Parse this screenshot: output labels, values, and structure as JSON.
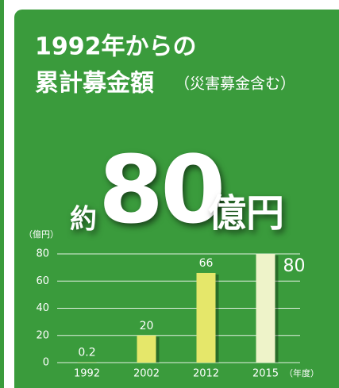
{
  "chart_data": {
    "type": "bar",
    "title": "1992年からの",
    "subtitle": "累計募金額",
    "subtitle_note": "（災害募金含む）",
    "headline": {
      "prefix": "約",
      "amount": "80",
      "unit": "億円"
    },
    "y_label": "（億円）",
    "x_label": "（年度）",
    "categories": [
      "1992",
      "2002",
      "2012",
      "2015"
    ],
    "values": [
      0.2,
      20,
      66,
      80
    ],
    "colors": [
      "#e5e76a",
      "#e5e76a",
      "#e5e76a",
      "#eef3c9"
    ],
    "ylim": [
      0,
      80
    ],
    "yticks": [
      0,
      20,
      40,
      60,
      80
    ],
    "grid": true
  }
}
